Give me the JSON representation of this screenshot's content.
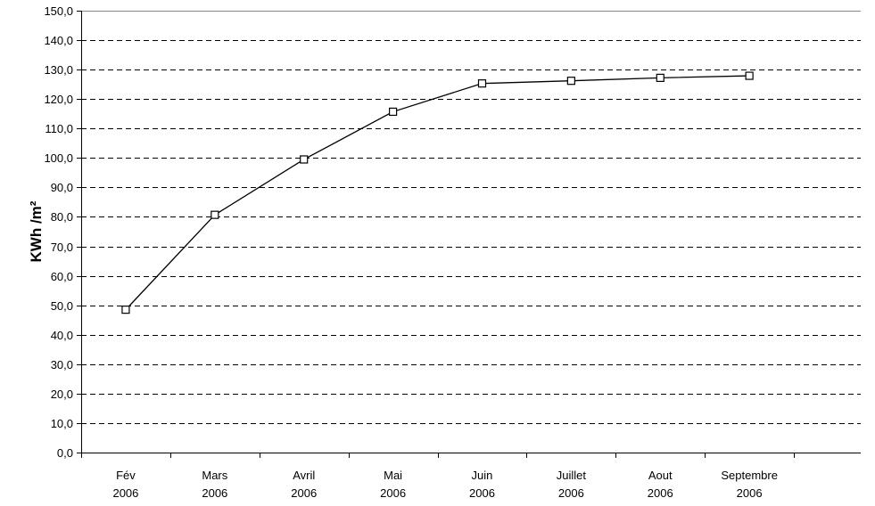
{
  "chart_data": {
    "type": "line",
    "title": "",
    "xlabel": "",
    "ylabel": "KWh /m²",
    "categories": [
      [
        "Fév",
        "2006"
      ],
      [
        "Mars",
        "2006"
      ],
      [
        "Avril",
        "2006"
      ],
      [
        "Mai",
        "2006"
      ],
      [
        "Juin",
        "2006"
      ],
      [
        "Juillet",
        "2006"
      ],
      [
        "Aout",
        "2006"
      ],
      [
        "Septembre",
        "2006"
      ]
    ],
    "series": [
      {
        "values": [
          48.5,
          80.7,
          99.5,
          115.7,
          125.3,
          126.2,
          127.2,
          127.9
        ]
      }
    ],
    "ylim": [
      0,
      150
    ],
    "ytick_step": 10,
    "ytick_labels": [
      "0,0",
      "10,0",
      "20,0",
      "30,0",
      "40,0",
      "50,0",
      "60,0",
      "70,0",
      "80,0",
      "90,0",
      "100,0",
      "110,0",
      "120,0",
      "130,0",
      "140,0",
      "150,0"
    ],
    "grid": "horizontal-dashed",
    "legend": "none",
    "marker": "hollow-square",
    "line_color": "#000000"
  }
}
